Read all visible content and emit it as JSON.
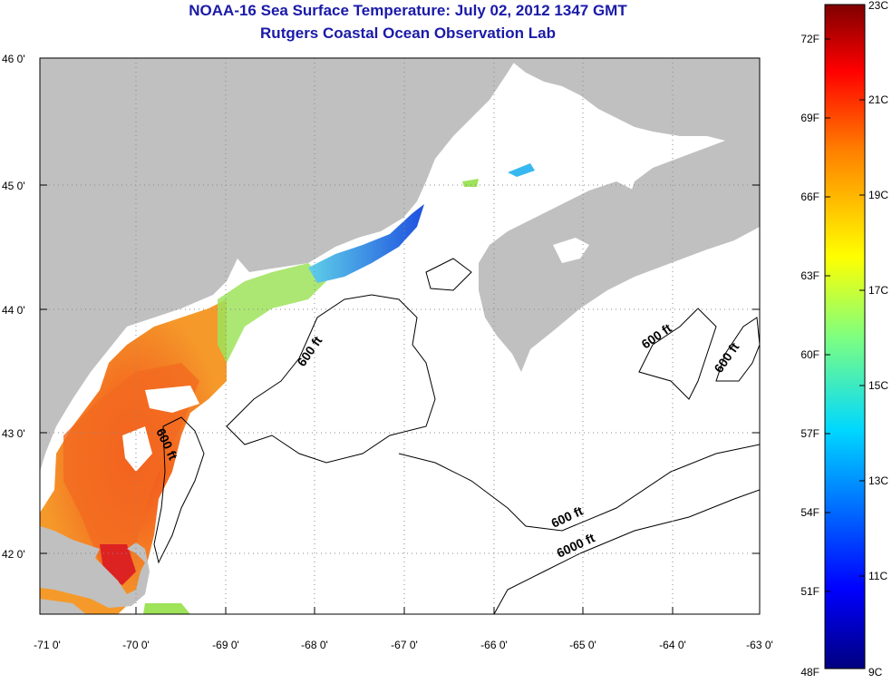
{
  "title": "NOAA-16 Sea Surface Temperature:  July 02, 2012 1347 GMT",
  "subtitle": "Rutgers Coastal Ocean Observation Lab",
  "colors": {
    "land": "#c0c0c0",
    "ocean": "#ffffff",
    "grid": "#8a8a8a",
    "title": "#1a1aa8"
  },
  "lat_ticks": [
    "46 0'",
    "45 0'",
    "44 0'",
    "43 0'",
    "42 0'"
  ],
  "lon_ticks": [
    "-71 0'",
    "-70 0'",
    "-69 0'",
    "-68 0'",
    "-67 0'",
    "-66 0'",
    "-65 0'",
    "-64 0'",
    "-63 0'"
  ],
  "colorbar": {
    "left_labels": [
      "72F",
      "69F",
      "66F",
      "63F",
      "60F",
      "57F",
      "54F",
      "51F",
      "48F"
    ],
    "right_labels": [
      "23C",
      "21C",
      "19C",
      "17C",
      "15C",
      "13C",
      "11C",
      "9C"
    ]
  },
  "contour_labels": [
    "600 ft",
    "600 ft",
    "600 ft",
    "600 ft",
    "600 ft",
    "6000 ft"
  ]
}
